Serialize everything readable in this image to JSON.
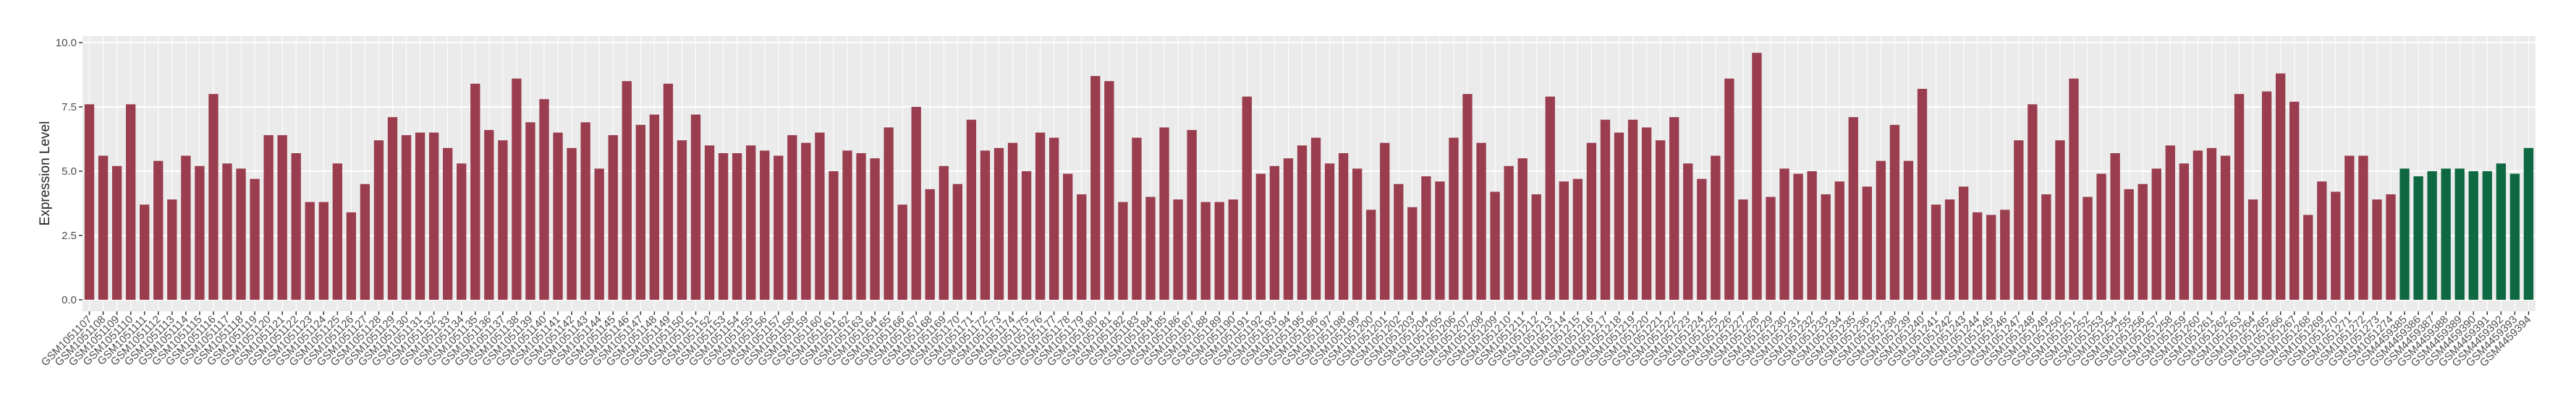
{
  "chart_data": {
    "type": "bar",
    "ylabel": "Expression Level",
    "categories": [
      "GSM1051107",
      "GSM1051108",
      "GSM1051109",
      "GSM1051110",
      "GSM1051111",
      "GSM1051112",
      "GSM1051113",
      "GSM1051114",
      "GSM1051115",
      "GSM1051116",
      "GSM1051117",
      "GSM1051118",
      "GSM1051119",
      "GSM1051120",
      "GSM1051121",
      "GSM1051122",
      "GSM1051123",
      "GSM1051124",
      "GSM1051125",
      "GSM1051126",
      "GSM1051127",
      "GSM1051128",
      "GSM1051129",
      "GSM1051130",
      "GSM1051131",
      "GSM1051132",
      "GSM1051133",
      "GSM1051134",
      "GSM1051135",
      "GSM1051136",
      "GSM1051137",
      "GSM1051138",
      "GSM1051139",
      "GSM1051140",
      "GSM1051141",
      "GSM1051142",
      "GSM1051143",
      "GSM1051144",
      "GSM1051145",
      "GSM1051146",
      "GSM1051147",
      "GSM1051148",
      "GSM1051149",
      "GSM1051150",
      "GSM1051151",
      "GSM1051152",
      "GSM1051153",
      "GSM1051154",
      "GSM1051155",
      "GSM1051156",
      "GSM1051157",
      "GSM1051158",
      "GSM1051159",
      "GSM1051160",
      "GSM1051161",
      "GSM1051162",
      "GSM1051163",
      "GSM1051164",
      "GSM1051165",
      "GSM1051166",
      "GSM1051167",
      "GSM1051168",
      "GSM1051169",
      "GSM1051170",
      "GSM1051171",
      "GSM1051172",
      "GSM1051173",
      "GSM1051174",
      "GSM1051175",
      "GSM1051176",
      "GSM1051177",
      "GSM1051178",
      "GSM1051179",
      "GSM1051180",
      "GSM1051181",
      "GSM1051182",
      "GSM1051183",
      "GSM1051184",
      "GSM1051185",
      "GSM1051186",
      "GSM1051187",
      "GSM1051188",
      "GSM1051189",
      "GSM1051190",
      "GSM1051191",
      "GSM1051192",
      "GSM1051193",
      "GSM1051194",
      "GSM1051195",
      "GSM1051196",
      "GSM1051197",
      "GSM1051198",
      "GSM1051199",
      "GSM1051200",
      "GSM1051201",
      "GSM1051202",
      "GSM1051203",
      "GSM1051204",
      "GSM1051205",
      "GSM1051206",
      "GSM1051207",
      "GSM1051208",
      "GSM1051209",
      "GSM1051210",
      "GSM1051211",
      "GSM1051212",
      "GSM1051213",
      "GSM1051214",
      "GSM1051215",
      "GSM1051216",
      "GSM1051217",
      "GSM1051218",
      "GSM1051219",
      "GSM1051220",
      "GSM1051221",
      "GSM1051222",
      "GSM1051223",
      "GSM1051224",
      "GSM1051225",
      "GSM1051226",
      "GSM1051227",
      "GSM1051228",
      "GSM1051229",
      "GSM1051230",
      "GSM1051231",
      "GSM1051232",
      "GSM1051233",
      "GSM1051234",
      "GSM1051235",
      "GSM1051236",
      "GSM1051237",
      "GSM1051238",
      "GSM1051239",
      "GSM1051240",
      "GSM1051241",
      "GSM1051242",
      "GSM1051243",
      "GSM1051244",
      "GSM1051245",
      "GSM1051246",
      "GSM1051247",
      "GSM1051248",
      "GSM1051249",
      "GSM1051250",
      "GSM1051251",
      "GSM1051252",
      "GSM1051253",
      "GSM1051254",
      "GSM1051255",
      "GSM1051256",
      "GSM1051257",
      "GSM1051258",
      "GSM1051259",
      "GSM1051260",
      "GSM1051261",
      "GSM1051262",
      "GSM1051263",
      "GSM1051264",
      "GSM1051265",
      "GSM1051266",
      "GSM1051267",
      "GSM1051268",
      "GSM1051269",
      "GSM1051270",
      "GSM1051271",
      "GSM1051272",
      "GSM1051273",
      "GSM1051274",
      "GSM4459385",
      "GSM4459386",
      "GSM4459387",
      "GSM4459388",
      "GSM4459389",
      "GSM4459390",
      "GSM4459391",
      "GSM4459392",
      "GSM4459393",
      "GSM4459394"
    ],
    "values": [
      7.6,
      5.6,
      5.2,
      7.6,
      3.7,
      5.4,
      3.9,
      5.6,
      5.2,
      8.0,
      5.3,
      5.1,
      4.7,
      6.4,
      6.4,
      5.7,
      3.8,
      3.8,
      5.3,
      3.4,
      4.5,
      6.2,
      7.1,
      6.4,
      6.5,
      6.5,
      5.9,
      5.3,
      8.4,
      6.6,
      6.2,
      8.6,
      6.9,
      7.8,
      6.5,
      5.9,
      6.9,
      5.1,
      6.4,
      8.5,
      6.8,
      7.2,
      8.4,
      6.2,
      7.2,
      6.0,
      5.7,
      5.7,
      6.0,
      5.8,
      5.6,
      6.4,
      6.1,
      6.5,
      5.0,
      5.8,
      5.7,
      5.5,
      6.7,
      3.7,
      7.5,
      4.3,
      5.2,
      4.5,
      7.0,
      5.8,
      5.9,
      6.1,
      5.0,
      6.5,
      6.3,
      4.9,
      4.1,
      8.7,
      8.5,
      3.8,
      6.3,
      4.0,
      6.7,
      3.9,
      6.6,
      3.8,
      3.8,
      3.9,
      7.9,
      4.9,
      5.2,
      5.5,
      6.0,
      6.3,
      5.3,
      5.7,
      5.1,
      3.5,
      6.1,
      4.5,
      3.6,
      4.8,
      4.6,
      6.3,
      8.0,
      6.1,
      4.2,
      5.2,
      5.5,
      4.1,
      7.9,
      4.6,
      4.7,
      6.1,
      7.0,
      6.5,
      7.0,
      6.7,
      6.2,
      7.1,
      5.3,
      4.7,
      5.6,
      8.6,
      3.9,
      9.6,
      4.0,
      5.1,
      4.9,
      5.0,
      4.1,
      4.6,
      7.1,
      4.4,
      5.4,
      6.8,
      5.4,
      8.2,
      3.7,
      3.9,
      4.4,
      3.4,
      3.3,
      3.5,
      6.2,
      7.6,
      4.1,
      6.2,
      8.6,
      4.0,
      4.9,
      5.7,
      4.3,
      4.5,
      5.1,
      6.0,
      5.3,
      5.8,
      5.9,
      5.6,
      8.0,
      3.9,
      8.1,
      8.8,
      7.7,
      3.3,
      4.6,
      4.2,
      5.6,
      5.6,
      3.9,
      4.1,
      5.1,
      4.8,
      5.0,
      5.1,
      5.1,
      5.0,
      5.0,
      5.3,
      4.9,
      5.9
    ],
    "colors": [
      "#9a3d4e",
      "#9a3d4e",
      "#9a3d4e",
      "#9a3d4e",
      "#9a3d4e",
      "#9a3d4e",
      "#9a3d4e",
      "#9a3d4e",
      "#9a3d4e",
      "#9a3d4e",
      "#9a3d4e",
      "#9a3d4e",
      "#9a3d4e",
      "#9a3d4e",
      "#9a3d4e",
      "#9a3d4e",
      "#9a3d4e",
      "#9a3d4e",
      "#9a3d4e",
      "#9a3d4e",
      "#9a3d4e",
      "#9a3d4e",
      "#9a3d4e",
      "#9a3d4e",
      "#9a3d4e",
      "#9a3d4e",
      "#9a3d4e",
      "#9a3d4e",
      "#9a3d4e",
      "#9a3d4e",
      "#9a3d4e",
      "#9a3d4e",
      "#9a3d4e",
      "#9a3d4e",
      "#9a3d4e",
      "#9a3d4e",
      "#9a3d4e",
      "#9a3d4e",
      "#9a3d4e",
      "#9a3d4e",
      "#9a3d4e",
      "#9a3d4e",
      "#9a3d4e",
      "#9a3d4e",
      "#9a3d4e",
      "#9a3d4e",
      "#9a3d4e",
      "#9a3d4e",
      "#9a3d4e",
      "#9a3d4e",
      "#9a3d4e",
      "#9a3d4e",
      "#9a3d4e",
      "#9a3d4e",
      "#9a3d4e",
      "#9a3d4e",
      "#9a3d4e",
      "#9a3d4e",
      "#9a3d4e",
      "#9a3d4e",
      "#9a3d4e",
      "#9a3d4e",
      "#9a3d4e",
      "#9a3d4e",
      "#9a3d4e",
      "#9a3d4e",
      "#9a3d4e",
      "#9a3d4e",
      "#9a3d4e",
      "#9a3d4e",
      "#9a3d4e",
      "#9a3d4e",
      "#9a3d4e",
      "#9a3d4e",
      "#9a3d4e",
      "#9a3d4e",
      "#9a3d4e",
      "#9a3d4e",
      "#9a3d4e",
      "#9a3d4e",
      "#9a3d4e",
      "#9a3d4e",
      "#9a3d4e",
      "#9a3d4e",
      "#9a3d4e",
      "#9a3d4e",
      "#9a3d4e",
      "#9a3d4e",
      "#9a3d4e",
      "#9a3d4e",
      "#9a3d4e",
      "#9a3d4e",
      "#9a3d4e",
      "#9a3d4e",
      "#9a3d4e",
      "#9a3d4e",
      "#9a3d4e",
      "#9a3d4e",
      "#9a3d4e",
      "#9a3d4e",
      "#9a3d4e",
      "#9a3d4e",
      "#9a3d4e",
      "#9a3d4e",
      "#9a3d4e",
      "#9a3d4e",
      "#9a3d4e",
      "#9a3d4e",
      "#9a3d4e",
      "#9a3d4e",
      "#9a3d4e",
      "#9a3d4e",
      "#9a3d4e",
      "#9a3d4e",
      "#9a3d4e",
      "#9a3d4e",
      "#9a3d4e",
      "#9a3d4e",
      "#9a3d4e",
      "#9a3d4e",
      "#9a3d4e",
      "#9a3d4e",
      "#9a3d4e",
      "#9a3d4e",
      "#9a3d4e",
      "#9a3d4e",
      "#9a3d4e",
      "#9a3d4e",
      "#9a3d4e",
      "#9a3d4e",
      "#9a3d4e",
      "#9a3d4e",
      "#9a3d4e",
      "#9a3d4e",
      "#9a3d4e",
      "#9a3d4e",
      "#9a3d4e",
      "#9a3d4e",
      "#9a3d4e",
      "#9a3d4e",
      "#9a3d4e",
      "#9a3d4e",
      "#9a3d4e",
      "#9a3d4e",
      "#9a3d4e",
      "#9a3d4e",
      "#9a3d4e",
      "#9a3d4e",
      "#9a3d4e",
      "#9a3d4e",
      "#9a3d4e",
      "#9a3d4e",
      "#9a3d4e",
      "#9a3d4e",
      "#9a3d4e",
      "#9a3d4e",
      "#9a3d4e",
      "#9a3d4e",
      "#9a3d4e",
      "#9a3d4e",
      "#9a3d4e",
      "#9a3d4e",
      "#9a3d4e",
      "#9a3d4e",
      "#9a3d4e",
      "#9a3d4e",
      "#9a3d4e",
      "#9a3d4e",
      "#0e6841",
      "#0e6841",
      "#0e6841",
      "#0e6841",
      "#0e6841",
      "#0e6841",
      "#0e6841",
      "#0e6841",
      "#0e6841",
      "#0e6841"
    ],
    "ylim": [
      -0.45,
      10.25
    ],
    "yticks": [
      {
        "value": 0,
        "label": "0.0"
      },
      {
        "value": 2.5,
        "label": "2.5"
      },
      {
        "value": 5,
        "label": "5.0"
      },
      {
        "value": 7.5,
        "label": "7.5"
      },
      {
        "value": 10,
        "label": "10.0"
      }
    ],
    "grid": true
  }
}
